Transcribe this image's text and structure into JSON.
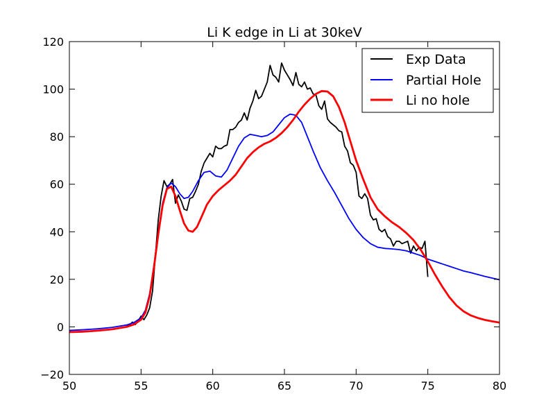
{
  "chart_data": {
    "type": "line",
    "title": "Li K edge in Li at 30keV",
    "xlabel": "",
    "ylabel": "",
    "xlim": [
      50,
      80
    ],
    "ylim": [
      -20,
      120
    ],
    "xticks": [
      50,
      55,
      60,
      65,
      70,
      75,
      80
    ],
    "yticks": [
      -20,
      0,
      20,
      40,
      60,
      80,
      100,
      120
    ],
    "grid": false,
    "legend_position": "top-right",
    "series": [
      {
        "name": "Exp Data",
        "color": "#000000",
        "line_width": "thin",
        "points": [
          [
            54.0,
            0.5
          ],
          [
            54.2,
            0.8
          ],
          [
            54.4,
            2.0
          ],
          [
            54.6,
            1.0
          ],
          [
            54.8,
            2.5
          ],
          [
            55.0,
            4.5
          ],
          [
            55.2,
            3.0
          ],
          [
            55.4,
            5.0
          ],
          [
            55.6,
            8.0
          ],
          [
            55.8,
            15.0
          ],
          [
            56.0,
            30.0
          ],
          [
            56.2,
            45.0
          ],
          [
            56.4,
            55.0
          ],
          [
            56.6,
            61.5
          ],
          [
            56.8,
            59.0
          ],
          [
            57.0,
            60.0
          ],
          [
            57.2,
            62.0
          ],
          [
            57.4,
            52.0
          ],
          [
            57.6,
            55.5
          ],
          [
            57.8,
            53.0
          ],
          [
            58.0,
            49.5
          ],
          [
            58.2,
            49.0
          ],
          [
            58.4,
            54.0
          ],
          [
            58.6,
            54.5
          ],
          [
            58.8,
            57.0
          ],
          [
            59.0,
            60.0
          ],
          [
            59.2,
            65.5
          ],
          [
            59.4,
            69.0
          ],
          [
            59.6,
            71.0
          ],
          [
            59.8,
            73.0
          ],
          [
            60.0,
            71.5
          ],
          [
            60.2,
            76.0
          ],
          [
            60.4,
            75.0
          ],
          [
            60.6,
            75.0
          ],
          [
            60.8,
            76.0
          ],
          [
            61.0,
            76.5
          ],
          [
            61.2,
            83.0
          ],
          [
            61.4,
            83.0
          ],
          [
            61.6,
            84.0
          ],
          [
            61.8,
            86.0
          ],
          [
            62.0,
            87.0
          ],
          [
            62.2,
            90.0
          ],
          [
            62.4,
            87.0
          ],
          [
            62.6,
            92.0
          ],
          [
            62.8,
            95.0
          ],
          [
            63.0,
            99.5
          ],
          [
            63.2,
            96.0
          ],
          [
            63.4,
            97.0
          ],
          [
            63.6,
            100.0
          ],
          [
            63.8,
            103.0
          ],
          [
            64.0,
            110.0
          ],
          [
            64.2,
            106.0
          ],
          [
            64.4,
            105.0
          ],
          [
            64.6,
            103.0
          ],
          [
            64.8,
            111.0
          ],
          [
            65.0,
            108.0
          ],
          [
            65.2,
            106.0
          ],
          [
            65.4,
            104.0
          ],
          [
            65.6,
            101.5
          ],
          [
            65.8,
            107.0
          ],
          [
            66.0,
            102.0
          ],
          [
            66.2,
            101.0
          ],
          [
            66.4,
            103.0
          ],
          [
            66.6,
            100.0
          ],
          [
            66.8,
            100.5
          ],
          [
            67.0,
            98.0
          ],
          [
            67.2,
            97.5
          ],
          [
            67.4,
            93.0
          ],
          [
            67.6,
            91.5
          ],
          [
            67.8,
            95.0
          ],
          [
            68.0,
            87.5
          ],
          [
            68.2,
            86.0
          ],
          [
            68.4,
            85.0
          ],
          [
            68.6,
            84.0
          ],
          [
            68.8,
            82.5
          ],
          [
            69.0,
            82.0
          ],
          [
            69.2,
            76.0
          ],
          [
            69.4,
            74.0
          ],
          [
            69.6,
            69.0
          ],
          [
            69.8,
            68.0
          ],
          [
            70.0,
            65.0
          ],
          [
            70.2,
            55.0
          ],
          [
            70.4,
            54.0
          ],
          [
            70.6,
            56.0
          ],
          [
            70.8,
            54.0
          ],
          [
            71.0,
            47.0
          ],
          [
            71.2,
            45.0
          ],
          [
            71.4,
            45.5
          ],
          [
            71.6,
            41.0
          ],
          [
            71.8,
            40.0
          ],
          [
            72.0,
            41.0
          ],
          [
            72.2,
            38.0
          ],
          [
            72.4,
            37.0
          ],
          [
            72.6,
            34.0
          ],
          [
            72.8,
            36.0
          ],
          [
            73.0,
            36.0
          ],
          [
            73.2,
            35.0
          ],
          [
            73.4,
            35.5
          ],
          [
            73.6,
            36.0
          ],
          [
            73.8,
            31.0
          ],
          [
            74.0,
            34.0
          ],
          [
            74.2,
            32.0
          ],
          [
            74.4,
            33.5
          ],
          [
            74.6,
            33.0
          ],
          [
            74.8,
            36.0
          ],
          [
            75.0,
            21.0
          ]
        ]
      },
      {
        "name": "Partial Hole",
        "color": "#0000ff",
        "line_width": "medium",
        "points": [
          [
            50,
            -1.5
          ],
          [
            51,
            -1.2
          ],
          [
            52,
            -0.8
          ],
          [
            53,
            -0.2
          ],
          [
            54,
            0.8
          ],
          [
            54.5,
            1.8
          ],
          [
            55,
            3.8
          ],
          [
            55.3,
            7.0
          ],
          [
            55.6,
            14.0
          ],
          [
            55.9,
            26.0
          ],
          [
            56.2,
            40.0
          ],
          [
            56.5,
            52.0
          ],
          [
            56.8,
            58.5
          ],
          [
            57.1,
            60.5
          ],
          [
            57.4,
            59.0
          ],
          [
            57.7,
            56.0
          ],
          [
            58.0,
            54.0
          ],
          [
            58.3,
            54.5
          ],
          [
            58.6,
            57.0
          ],
          [
            59.0,
            61.5
          ],
          [
            59.4,
            65.0
          ],
          [
            59.8,
            65.5
          ],
          [
            60.2,
            63.5
          ],
          [
            60.6,
            63.0
          ],
          [
            61.0,
            66.0
          ],
          [
            61.4,
            71.0
          ],
          [
            61.8,
            76.0
          ],
          [
            62.2,
            79.5
          ],
          [
            62.6,
            81.0
          ],
          [
            63.0,
            80.5
          ],
          [
            63.4,
            80.0
          ],
          [
            63.8,
            80.5
          ],
          [
            64.2,
            82.0
          ],
          [
            64.6,
            85.0
          ],
          [
            65.0,
            88.0
          ],
          [
            65.4,
            89.5
          ],
          [
            65.8,
            89.0
          ],
          [
            66.2,
            86.0
          ],
          [
            66.6,
            80.0
          ],
          [
            67.0,
            74.0
          ],
          [
            67.5,
            67.0
          ],
          [
            68.0,
            61.5
          ],
          [
            68.5,
            56.5
          ],
          [
            69.0,
            51.0
          ],
          [
            69.5,
            45.5
          ],
          [
            70.0,
            41.0
          ],
          [
            70.5,
            37.5
          ],
          [
            71.0,
            35.0
          ],
          [
            71.5,
            33.5
          ],
          [
            72.0,
            33.0
          ],
          [
            72.5,
            32.8
          ],
          [
            73.0,
            32.5
          ],
          [
            73.5,
            32.0
          ],
          [
            74.0,
            31.0
          ],
          [
            74.5,
            30.0
          ],
          [
            75.0,
            28.5
          ],
          [
            75.5,
            27.5
          ],
          [
            76.0,
            26.5
          ],
          [
            76.5,
            25.5
          ],
          [
            77.0,
            24.5
          ],
          [
            77.5,
            23.5
          ],
          [
            78.0,
            22.8
          ],
          [
            78.5,
            22.0
          ],
          [
            79.0,
            21.2
          ],
          [
            79.5,
            20.5
          ],
          [
            80,
            19.8
          ]
        ]
      },
      {
        "name": "Li no hole",
        "color": "#ff0000",
        "line_width": "thick",
        "points": [
          [
            50,
            -2.2
          ],
          [
            51,
            -2.0
          ],
          [
            52,
            -1.6
          ],
          [
            53,
            -1.0
          ],
          [
            54,
            0.0
          ],
          [
            54.5,
            1.0
          ],
          [
            55,
            3.0
          ],
          [
            55.3,
            6.0
          ],
          [
            55.6,
            13.0
          ],
          [
            55.9,
            25.0
          ],
          [
            56.2,
            39.0
          ],
          [
            56.5,
            51.0
          ],
          [
            56.8,
            58.0
          ],
          [
            57.1,
            59.0
          ],
          [
            57.4,
            55.0
          ],
          [
            57.7,
            49.0
          ],
          [
            58.0,
            43.5
          ],
          [
            58.3,
            40.5
          ],
          [
            58.6,
            40.0
          ],
          [
            58.9,
            42.0
          ],
          [
            59.2,
            46.0
          ],
          [
            59.6,
            51.5
          ],
          [
            60.0,
            55.0
          ],
          [
            60.4,
            57.5
          ],
          [
            60.8,
            59.5
          ],
          [
            61.2,
            61.5
          ],
          [
            61.6,
            64.0
          ],
          [
            62.0,
            67.5
          ],
          [
            62.4,
            71.0
          ],
          [
            62.8,
            73.5
          ],
          [
            63.2,
            75.5
          ],
          [
            63.6,
            77.0
          ],
          [
            64.0,
            78.0
          ],
          [
            64.4,
            79.5
          ],
          [
            64.8,
            81.5
          ],
          [
            65.2,
            84.0
          ],
          [
            65.6,
            87.0
          ],
          [
            66.0,
            90.5
          ],
          [
            66.4,
            93.5
          ],
          [
            66.8,
            96.0
          ],
          [
            67.2,
            98.0
          ],
          [
            67.6,
            99.2
          ],
          [
            68.0,
            99.0
          ],
          [
            68.4,
            97.0
          ],
          [
            68.8,
            92.5
          ],
          [
            69.2,
            86.0
          ],
          [
            69.6,
            78.0
          ],
          [
            70.0,
            70.0
          ],
          [
            70.5,
            62.0
          ],
          [
            71.0,
            54.5
          ],
          [
            71.5,
            49.5
          ],
          [
            72.0,
            46.5
          ],
          [
            72.5,
            44.0
          ],
          [
            73.0,
            42.0
          ],
          [
            73.5,
            39.5
          ],
          [
            74.0,
            36.5
          ],
          [
            74.5,
            32.5
          ],
          [
            75.0,
            27.5
          ],
          [
            75.5,
            22.0
          ],
          [
            76.0,
            17.0
          ],
          [
            76.5,
            12.5
          ],
          [
            77.0,
            9.0
          ],
          [
            77.5,
            6.5
          ],
          [
            78.0,
            4.8
          ],
          [
            78.5,
            3.7
          ],
          [
            79.0,
            2.9
          ],
          [
            79.5,
            2.3
          ],
          [
            80,
            1.8
          ]
        ]
      }
    ]
  }
}
